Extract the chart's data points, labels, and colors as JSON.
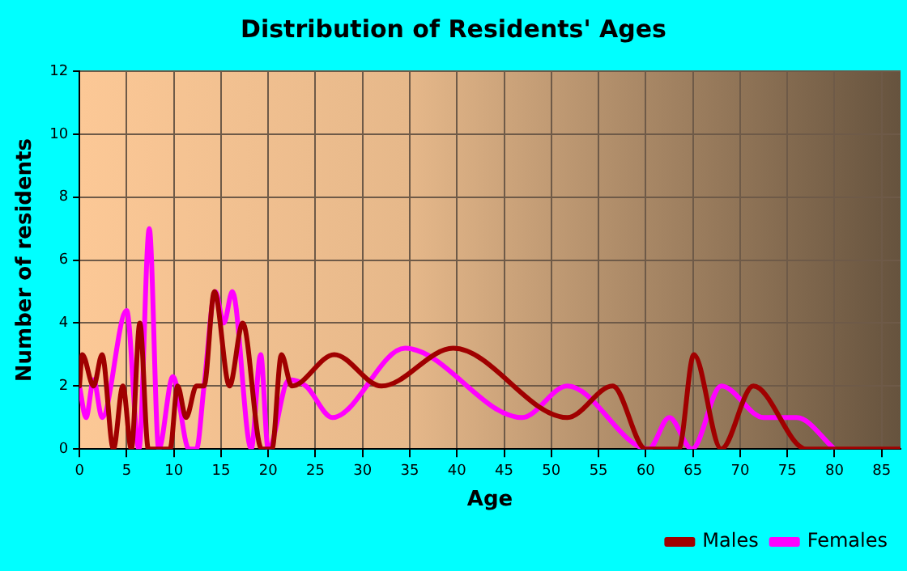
{
  "chart_data": {
    "type": "line",
    "title": "Distribution of Residents' Ages",
    "xlabel": "Age",
    "ylabel": "Number of residents",
    "xlim": [
      0,
      87
    ],
    "xticks": [
      0,
      5,
      10,
      15,
      20,
      25,
      30,
      35,
      40,
      45,
      50,
      55,
      60,
      65,
      70,
      75,
      80,
      85
    ],
    "ylim": [
      0,
      12
    ],
    "yticks": [
      0,
      2,
      4,
      6,
      8,
      10,
      12
    ],
    "grid": true,
    "legend": "bottom right",
    "marker": "none",
    "line_style": "solid",
    "series": [
      {
        "name": "Males",
        "color": "#a00000",
        "x": [
          0,
          0.3,
          1.5,
          2.4,
          3.6,
          4.6,
          5.5,
          6.4,
          7.3,
          9.6,
          10.4,
          11.3,
          12.4,
          13.2,
          14.3,
          15.9,
          17.3,
          19.3,
          20.4,
          21.4,
          22.5,
          27,
          32,
          39.6,
          51.7,
          56.5,
          60,
          63.5,
          65.1,
          68,
          71.4,
          77,
          87
        ],
        "values": [
          2,
          3,
          2,
          3,
          0,
          2,
          0,
          4,
          0,
          0,
          2,
          1,
          2,
          2,
          5,
          2,
          4,
          0,
          0,
          3,
          2,
          3,
          2,
          3.2,
          1,
          2,
          0,
          0,
          3,
          0,
          2,
          0,
          0
        ]
      },
      {
        "name": "Females",
        "color": "#ff00ff",
        "x": [
          0,
          0.7,
          1.5,
          2.4,
          5,
          6.3,
          7.4,
          8.4,
          9.9,
          11.6,
          12.4,
          13.2,
          14.4,
          15.3,
          16.2,
          18.2,
          19.2,
          20,
          22.2,
          24,
          26.8,
          34.5,
          46.9,
          51.7,
          60.3,
          62.5,
          64.9,
          68,
          72.5,
          76,
          80
        ],
        "values": [
          2,
          1,
          2.2,
          1,
          4.4,
          0,
          7,
          0,
          2.3,
          0,
          0,
          2,
          5,
          4,
          5,
          0,
          3,
          0,
          2.2,
          2,
          1,
          3.2,
          1,
          2,
          0,
          1,
          0,
          2,
          1,
          1,
          0
        ]
      }
    ]
  }
}
